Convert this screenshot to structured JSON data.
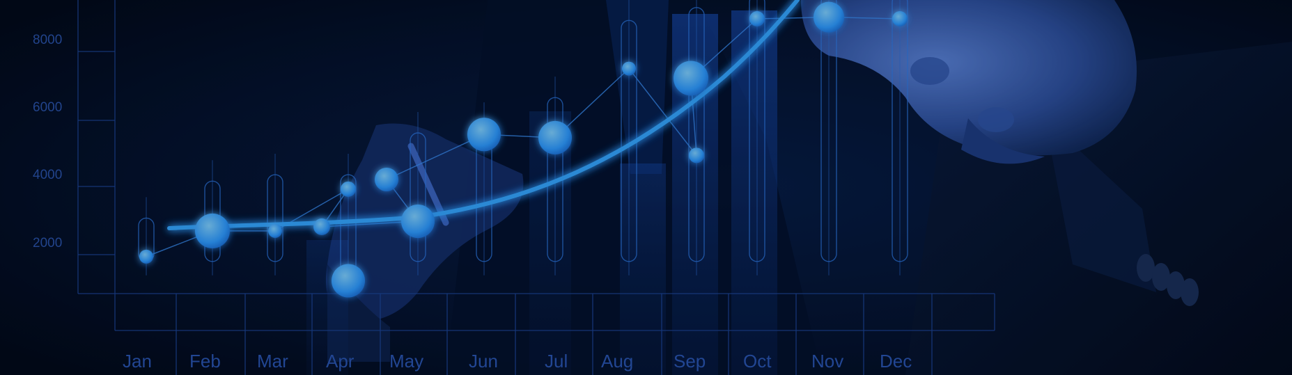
{
  "chart_data": {
    "type": "line",
    "categories": [
      "Jan",
      "Feb",
      "Mar",
      "Apr",
      "May",
      "Jun",
      "Jul",
      "Aug",
      "Sep",
      "Oct",
      "Nov",
      "Dec"
    ],
    "y_ticks": [
      "8000",
      "6000",
      "4000",
      "2000"
    ],
    "ylim": [
      0,
      10000
    ],
    "points": [
      {
        "month": "Jan",
        "y": 1150
      },
      {
        "month": "Feb",
        "y": 1950
      },
      {
        "month": "Mar",
        "y": 1950
      },
      {
        "month": "Apr",
        "y": 3250
      },
      {
        "month": "Apr",
        "y": 400
      },
      {
        "month": "Apr",
        "y": 2080
      },
      {
        "month": "May",
        "y": 2250
      },
      {
        "month": "May",
        "y": 3550
      },
      {
        "month": "Jun",
        "y": 4950
      },
      {
        "month": "Jul",
        "y": 4850
      },
      {
        "month": "Aug",
        "y": 7000
      },
      {
        "month": "Sep",
        "y": 4300
      },
      {
        "month": "Sep",
        "y": 6700
      },
      {
        "month": "Oct",
        "y": 8550
      },
      {
        "month": "Nov",
        "y": 8600
      },
      {
        "month": "Dec",
        "y": 8550
      }
    ],
    "grid": true,
    "colors": {
      "accent": "#2e9bff",
      "glow": "#41b4ff",
      "axis": "#1f4a9e",
      "background": "#020b1e"
    }
  }
}
